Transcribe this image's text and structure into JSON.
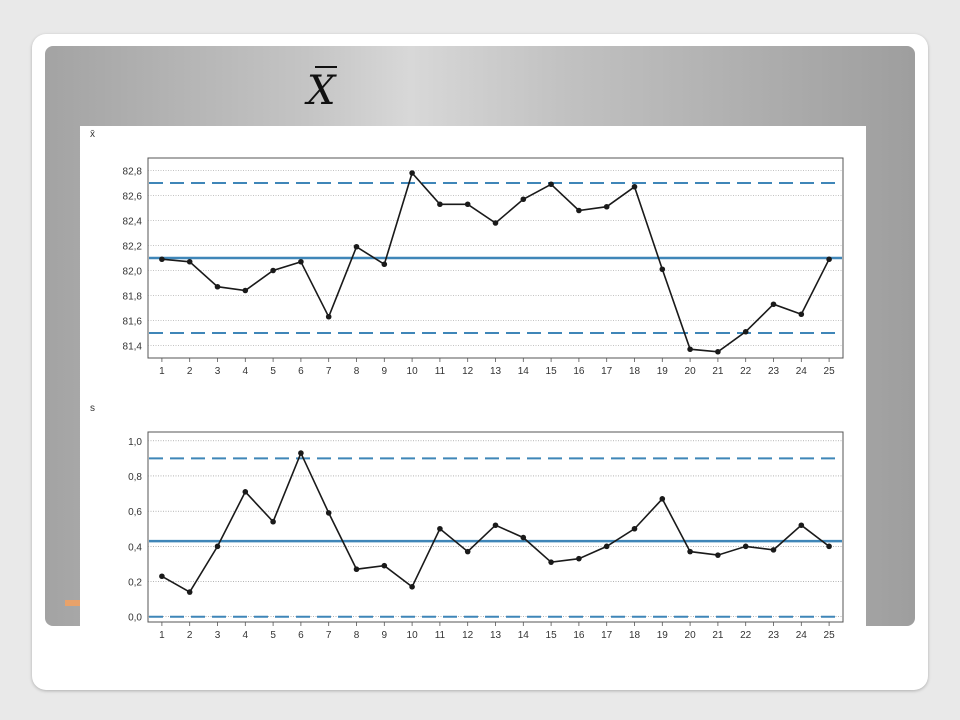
{
  "slide": {
    "title_symbol": "X"
  },
  "chart_data": [
    {
      "type": "line",
      "ylabel": "x̄",
      "x": [
        1,
        2,
        3,
        4,
        5,
        6,
        7,
        8,
        9,
        10,
        11,
        12,
        13,
        14,
        15,
        16,
        17,
        18,
        19,
        20,
        21,
        22,
        23,
        24,
        25
      ],
      "values": [
        82.09,
        82.07,
        81.87,
        81.84,
        82.0,
        82.07,
        81.63,
        82.19,
        82.05,
        82.78,
        82.53,
        82.53,
        82.38,
        82.57,
        82.69,
        82.48,
        82.51,
        82.67,
        82.01,
        81.37,
        81.35,
        81.51,
        81.73,
        81.65,
        82.09
      ],
      "ylim": [
        81.3,
        82.9
      ],
      "yticks": [
        "82,8",
        "82,6",
        "82,4",
        "82,2",
        "82,0",
        "81,8",
        "81,6",
        "81,4"
      ],
      "ytick_values": [
        82.8,
        82.6,
        82.4,
        82.2,
        82.0,
        81.8,
        81.6,
        81.4
      ],
      "center_line": 82.1,
      "control_limits": [
        82.7,
        81.5
      ],
      "colors": {
        "line": "#1a1a1a",
        "center": "#3f86b8",
        "limits": "#3f86b8"
      },
      "grid": true
    },
    {
      "type": "line",
      "ylabel": "s",
      "x": [
        1,
        2,
        3,
        4,
        5,
        6,
        7,
        8,
        9,
        10,
        11,
        12,
        13,
        14,
        15,
        16,
        17,
        18,
        19,
        20,
        21,
        22,
        23,
        24,
        25
      ],
      "values": [
        0.23,
        0.14,
        0.4,
        0.71,
        0.54,
        0.93,
        0.59,
        0.27,
        0.29,
        0.17,
        0.5,
        0.37,
        0.52,
        0.45,
        0.31,
        0.33,
        0.4,
        0.5,
        0.67,
        0.37,
        0.35,
        0.4,
        0.38,
        0.52,
        0.4
      ],
      "ylim": [
        -0.03,
        1.05
      ],
      "yticks": [
        "1,0",
        "0,8",
        "0,6",
        "0,4",
        "0,2",
        "0,0"
      ],
      "ytick_values": [
        1.0,
        0.8,
        0.6,
        0.4,
        0.2,
        0.0
      ],
      "center_line": 0.43,
      "control_limits": [
        0.9,
        0.0
      ],
      "colors": {
        "line": "#1a1a1a",
        "center": "#3f86b8",
        "limits": "#3f86b8"
      },
      "grid": true
    }
  ]
}
